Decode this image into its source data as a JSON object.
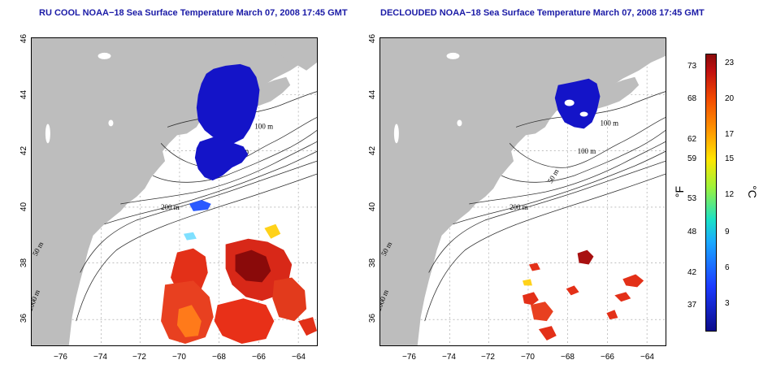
{
  "titles": {
    "left": "RU COOL NOAA−18 Sea Surface Temperature March 07, 2008 17:45 GMT",
    "right": "DECLOUDED NOAA−18 Sea Surface Temperature March 07, 2008 17:45 GMT"
  },
  "axes": {
    "x_ticks": [
      "−76",
      "−74",
      "−72",
      "−70",
      "−68",
      "−66",
      "−64"
    ],
    "y_ticks": [
      "36",
      "38",
      "40",
      "42",
      "44",
      "46"
    ]
  },
  "contour_labels": [
    "100 m",
    "100 m",
    "50 m",
    "200 m",
    "50 m",
    "2000 m"
  ],
  "colorbar": {
    "fahrenheit_ticks": [
      "73",
      "68",
      "62",
      "59",
      "53",
      "48",
      "42",
      "37"
    ],
    "celsius_ticks": [
      "23",
      "20",
      "17",
      "15",
      "12",
      "9",
      "6",
      "3"
    ],
    "fahrenheit_unit": "°F",
    "celsius_unit": "°C"
  },
  "colors": {
    "land": "#bdbdbd",
    "cold": "#1414c8",
    "warm": "#e8301a",
    "title": "#1a1aa6"
  }
}
